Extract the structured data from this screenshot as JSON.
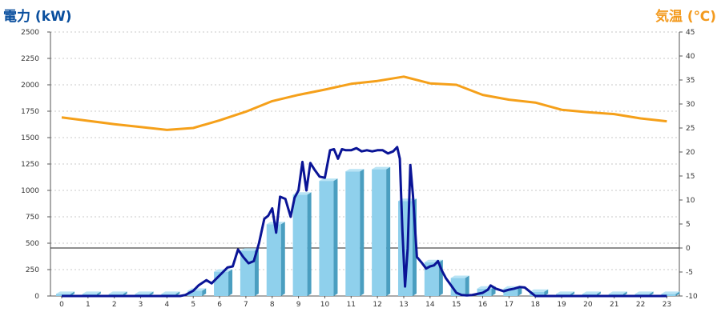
{
  "chart_data": {
    "type": "bar",
    "y_left_label": "電力 (kW)",
    "y_right_label": "気温 (℃)",
    "categories": [
      "0",
      "1",
      "2",
      "3",
      "4",
      "5",
      "6",
      "7",
      "8",
      "9",
      "10",
      "11",
      "12",
      "13",
      "14",
      "15",
      "16",
      "17",
      "18",
      "19",
      "20",
      "21",
      "22",
      "23"
    ],
    "y_left_ticks": [
      "0",
      "250",
      "500",
      "750",
      "1000",
      "1250",
      "1500",
      "1750",
      "2000",
      "2250",
      "2500"
    ],
    "y_right_ticks": [
      "-10",
      "-5",
      "0",
      "5",
      "10",
      "15",
      "20",
      "25",
      "30",
      "35",
      "40",
      "45"
    ],
    "ylim_left": [
      0,
      2500
    ],
    "ylim_right": [
      -10,
      45
    ],
    "grid": true,
    "series": [
      {
        "kind": "bar",
        "axis": "left",
        "color": "#8fd0ec",
        "values": [
          20,
          20,
          20,
          20,
          20,
          50,
          230,
          430,
          680,
          960,
          1090,
          1180,
          1200,
          900,
          320,
          170,
          70,
          70,
          40,
          20,
          20,
          20,
          20,
          20
        ]
      },
      {
        "kind": "line",
        "axis": "left",
        "color": "#0a1496",
        "x": [
          0,
          1,
          2,
          3,
          4,
          4.5,
          4.7,
          5,
          5.2,
          5.5,
          5.7,
          5.9,
          6.1,
          6.3,
          6.5,
          6.7,
          6.9,
          7.1,
          7.3,
          7.5,
          7.7,
          7.85,
          8,
          8.15,
          8.3,
          8.5,
          8.7,
          8.85,
          9,
          9.15,
          9.3,
          9.45,
          9.6,
          9.8,
          10,
          10.2,
          10.35,
          10.5,
          10.65,
          10.8,
          11,
          11.2,
          11.4,
          11.6,
          11.8,
          12,
          12.2,
          12.4,
          12.6,
          12.75,
          12.85,
          12.95,
          13.05,
          13.15,
          13.25,
          13.35,
          13.5,
          13.7,
          13.85,
          14,
          14.15,
          14.3,
          14.45,
          14.6,
          14.8,
          15,
          15.2,
          15.4,
          15.6,
          15.8,
          16,
          16.2,
          16.3,
          16.5,
          16.8,
          17,
          17.2,
          17.4,
          17.6,
          17.8,
          18,
          19,
          20,
          21,
          22,
          23
        ],
        "values": [
          0,
          0,
          0,
          0,
          0,
          0,
          10,
          50,
          100,
          150,
          120,
          170,
          220,
          270,
          280,
          440,
          370,
          310,
          330,
          500,
          730,
          760,
          830,
          600,
          940,
          920,
          750,
          930,
          1000,
          1270,
          1000,
          1260,
          1200,
          1130,
          1120,
          1380,
          1390,
          1300,
          1390,
          1380,
          1380,
          1400,
          1370,
          1380,
          1370,
          1380,
          1380,
          1350,
          1370,
          1410,
          1300,
          620,
          90,
          450,
          1240,
          950,
          370,
          310,
          260,
          280,
          290,
          330,
          240,
          170,
          100,
          30,
          10,
          5,
          10,
          20,
          30,
          60,
          100,
          70,
          45,
          60,
          70,
          85,
          80,
          40,
          0,
          0,
          0,
          0,
          0,
          0
        ]
      },
      {
        "kind": "line",
        "axis": "right",
        "color": "#f5a01a",
        "values": [
          27.2,
          26.5,
          25.8,
          25.2,
          24.6,
          25.0,
          26.6,
          28.4,
          30.6,
          31.9,
          33.0,
          34.2,
          34.8,
          35.7,
          34.3,
          34.0,
          31.9,
          30.9,
          30.3,
          28.8,
          28.3,
          27.9,
          27.0,
          26.4
        ]
      }
    ]
  }
}
